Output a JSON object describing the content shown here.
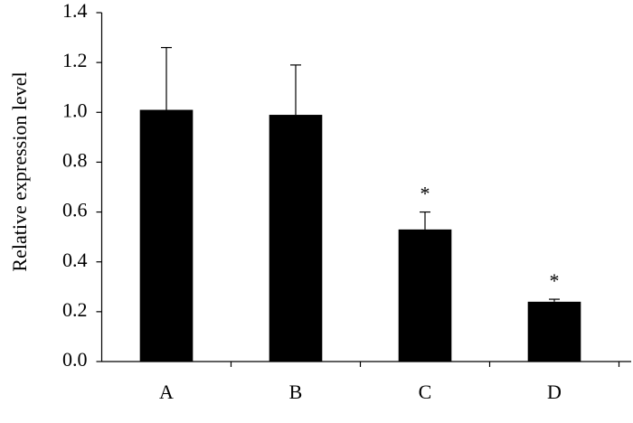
{
  "chart_data": {
    "type": "bar",
    "y_label": "Relative expression level",
    "categories": [
      "A",
      "B",
      "C",
      "D"
    ],
    "values": [
      1.01,
      0.99,
      0.53,
      0.24
    ],
    "errors": [
      0.25,
      0.2,
      0.07,
      0.01
    ],
    "significance": [
      null,
      null,
      "*",
      "*"
    ],
    "color": "#000000",
    "ylim": [
      0,
      1.4
    ],
    "yticks": [
      {
        "value": 0,
        "label": "0.0"
      },
      0.2,
      0.4,
      0.6,
      0.8,
      {
        "value": 1,
        "label": "1.0"
      },
      1.2,
      1.4
    ],
    "grid": false
  }
}
